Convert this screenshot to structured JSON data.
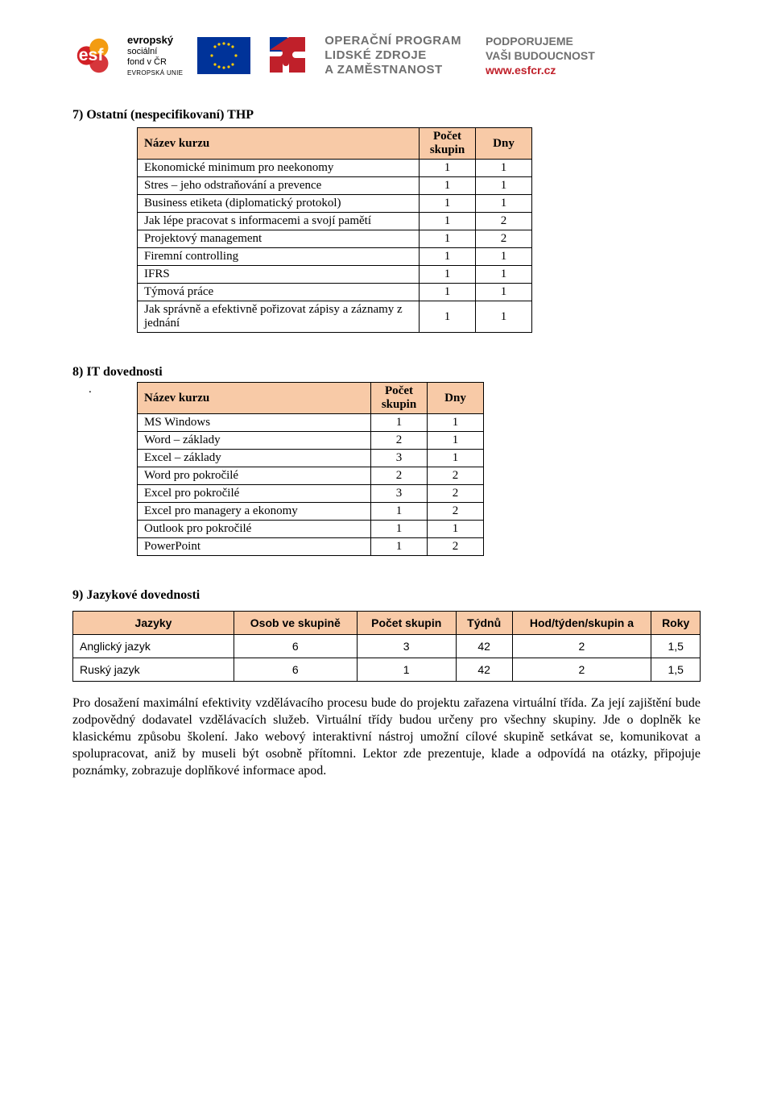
{
  "header": {
    "esf": {
      "line1": "evropský",
      "line2": "sociální",
      "line3": "fond v ČR",
      "eu_label": "EVROPSKÁ UNIE"
    },
    "program": {
      "line1": "OPERAČNÍ PROGRAM",
      "line2": "LIDSKÉ ZDROJE",
      "line3": "A ZAMĚSTNANOST"
    },
    "support": {
      "line1": "PODPORUJEME",
      "line2": "VAŠI BUDOUCNOST",
      "link": "www.esfcr.cz"
    }
  },
  "section7": {
    "title": "7)  Ostatní (nespecifikovaní) THP",
    "headers": {
      "name": "Název kurzu",
      "count": "Počet skupin",
      "days": "Dny"
    },
    "rows": [
      {
        "name": "Ekonomické minimum pro neekonomy",
        "count": "1",
        "days": "1"
      },
      {
        "name": "Stres – jeho odstraňování a prevence",
        "count": "1",
        "days": "1"
      },
      {
        "name": "Business etiketa (diplomatický protokol)",
        "count": "1",
        "days": "1"
      },
      {
        "name": "Jak lépe pracovat s informacemi a svojí pamětí",
        "count": "1",
        "days": "2"
      },
      {
        "name": "Projektový management",
        "count": "1",
        "days": "2"
      },
      {
        "name": "Firemní controlling",
        "count": "1",
        "days": "1"
      },
      {
        "name": "IFRS",
        "count": "1",
        "days": "1"
      },
      {
        "name": "Týmová práce",
        "count": "1",
        "days": "1"
      },
      {
        "name": "Jak správně a efektivně pořizovat zápisy a záznamy z jednání",
        "count": "1",
        "days": "1"
      }
    ]
  },
  "section8": {
    "title": "8)  IT dovednosti",
    "dot": ".",
    "headers": {
      "name": "Název kurzu",
      "count": "Počet skupin",
      "days": "Dny"
    },
    "rows": [
      {
        "name": "MS Windows",
        "count": "1",
        "days": "1"
      },
      {
        "name": "Word – základy",
        "count": "2",
        "days": "1"
      },
      {
        "name": "Excel – základy",
        "count": "3",
        "days": "1"
      },
      {
        "name": "Word pro pokročilé",
        "count": "2",
        "days": "2"
      },
      {
        "name": "Excel pro pokročilé",
        "count": "3",
        "days": "2"
      },
      {
        "name": "Excel pro managery a ekonomy",
        "count": "1",
        "days": "2"
      },
      {
        "name": "Outlook pro pokročilé",
        "count": "1",
        "days": "1"
      },
      {
        "name": "PowerPoint",
        "count": "1",
        "days": "2"
      }
    ]
  },
  "section9": {
    "title": "9)  Jazykové dovednosti",
    "headers": {
      "lang": "Jazyky",
      "persons": "Osob ve skupině",
      "groups": "Počet skupin",
      "weeks": "Týdnů",
      "hours": "Hod/týden/skupin a",
      "years": "Roky"
    },
    "rows": [
      {
        "lang": "Anglický jazyk",
        "persons": "6",
        "groups": "3",
        "weeks": "42",
        "hours": "2",
        "years": "1,5"
      },
      {
        "lang": "Ruský jazyk",
        "persons": "6",
        "groups": "1",
        "weeks": "42",
        "hours": "2",
        "years": "1,5"
      }
    ]
  },
  "paragraph": "Pro dosažení maximální efektivity vzdělávacího procesu bude do projektu zařazena virtuální třída. Za její zajištění bude zodpovědný dodavatel vzdělávacích služeb. Virtuální třídy budou určeny pro všechny skupiny. Jde o doplněk ke klasickému způsobu školení. Jako webový interaktivní nástroj umožní cílové skupině setkávat se, komunikovat a spolupracovat, aniž by museli být osobně přítomni. Lektor zde prezentuje, klade a odpovídá na otázky, připojuje poznámky, zobrazuje doplňkové informace apod.",
  "styling": {
    "table_header_bg": "#f8caa7",
    "table_border": "#000000",
    "body_font": "Times New Roman",
    "header_font": "Arial",
    "body_fontsize": 16,
    "table_fontsize": 15,
    "lang_table_fontsize": 14,
    "accent_red": "#c0202a",
    "accent_gray": "#6f6f6f",
    "eu_blue": "#003399",
    "eu_yellow": "#ffcc00",
    "esf_red": "#d22026",
    "esf_orange": "#f39c12",
    "col_name_width": 350,
    "col_num_width": 70
  }
}
